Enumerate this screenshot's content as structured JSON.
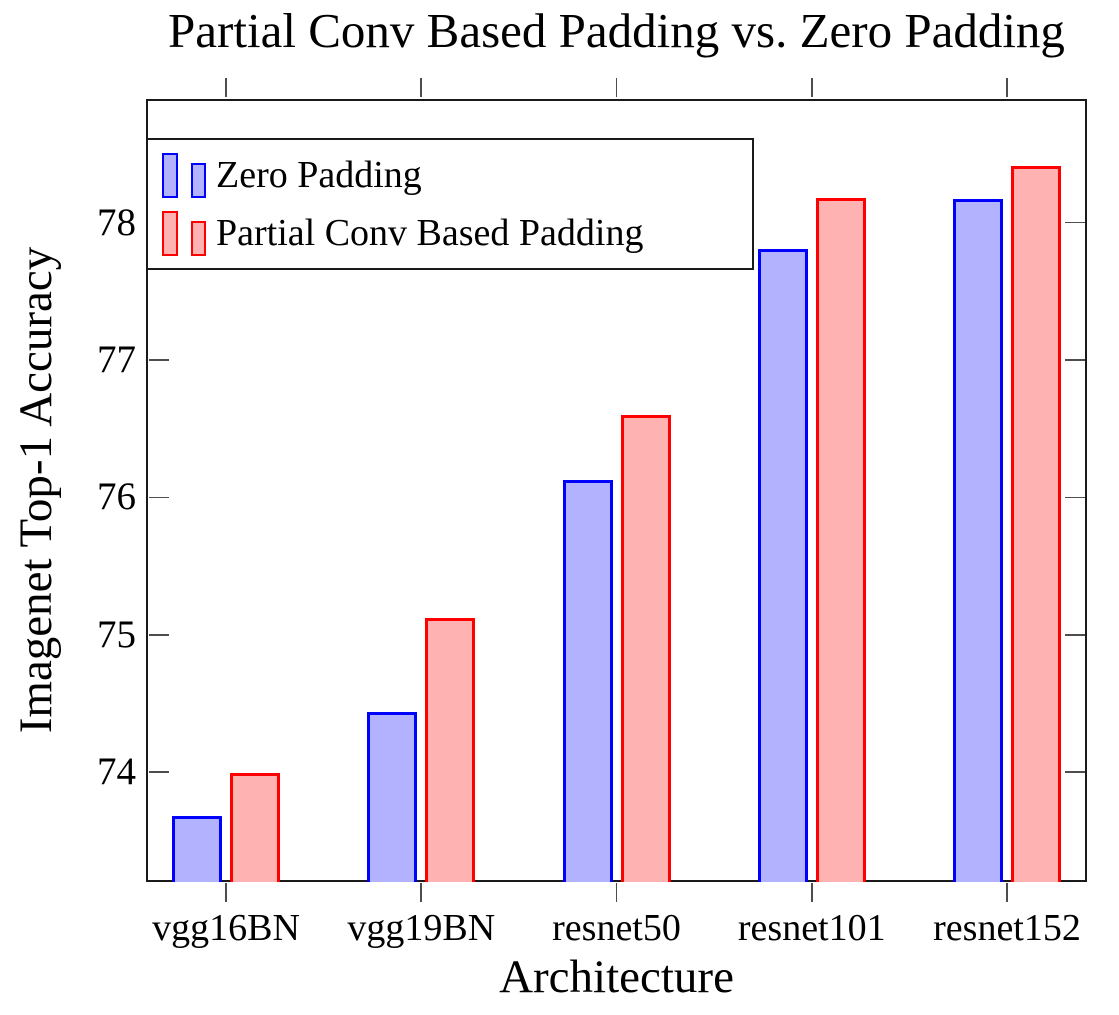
{
  "chart_data": {
    "type": "bar",
    "title": "Partial Conv Based Padding vs. Zero Padding",
    "xlabel": "Architecture",
    "ylabel": "Imagenet Top-1 Accuracy",
    "categories": [
      "vgg16BN",
      "vgg19BN",
      "resnet50",
      "resnet101",
      "resnet152"
    ],
    "series": [
      {
        "name": "Zero Padding",
        "border_color": "#0000ff",
        "fill_color": "#b2b2ff",
        "values": [
          73.68,
          74.44,
          76.13,
          77.81,
          78.17
        ]
      },
      {
        "name": "Partial Conv Based Padding",
        "border_color": "#ff0000",
        "fill_color": "#ffb2b2",
        "values": [
          73.99,
          75.12,
          76.6,
          78.18,
          78.41
        ]
      }
    ],
    "ylim": [
      73.2,
      78.9
    ],
    "yticks": [
      74,
      75,
      76,
      77,
      78
    ],
    "grid": false,
    "legend_position": "top-left",
    "axis_line_color": "#1a1a1a",
    "tick_color": "#4d4d4d"
  }
}
